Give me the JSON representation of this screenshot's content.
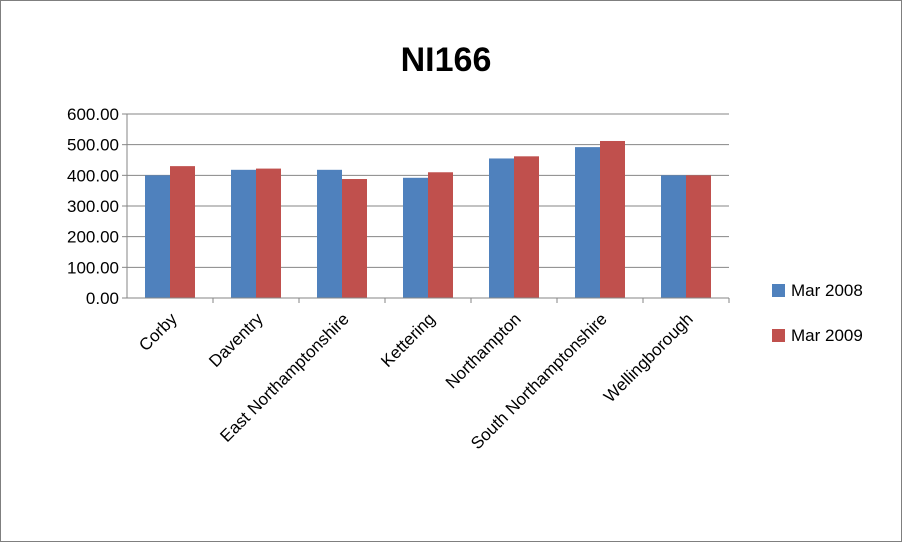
{
  "chart_data": {
    "type": "bar",
    "title": "NI166",
    "xlabel": "",
    "ylabel": "",
    "categories": [
      "Corby",
      "Daventry",
      "East Northamptonshire",
      "Kettering",
      "Northampton",
      "South Northamptonshire",
      "Wellingborough"
    ],
    "series": [
      {
        "name": "Mar 2008",
        "color": "#4f81bd",
        "values": [
          400,
          418,
          418,
          392,
          455,
          492,
          400
        ]
      },
      {
        "name": "Mar 2009",
        "color": "#c0504d",
        "values": [
          430,
          422,
          388,
          410,
          462,
          512,
          400
        ]
      }
    ],
    "ylim": [
      0,
      600
    ],
    "yticks": [
      "0.00",
      "100.00",
      "200.00",
      "300.00",
      "400.00",
      "500.00",
      "600.00"
    ],
    "grid": true,
    "legend_position": "right"
  }
}
